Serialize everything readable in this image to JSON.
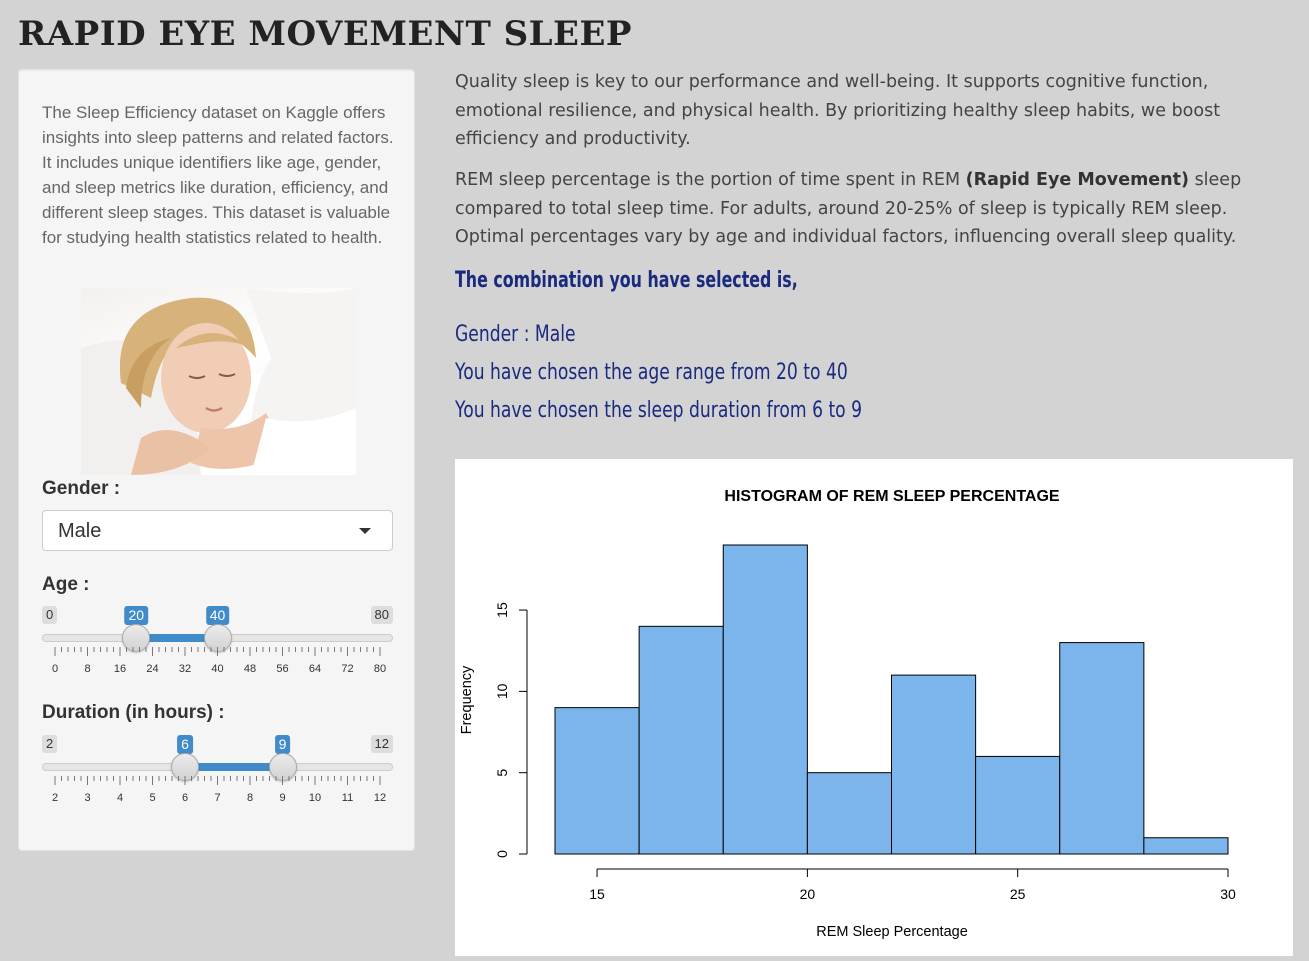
{
  "page": {
    "title": "RAPID EYE MOVEMENT SLEEP"
  },
  "sidebar": {
    "intro": "The Sleep Efficiency dataset on Kaggle offers insights into sleep patterns and related factors. It includes unique identifiers like age, gender, and sleep metrics like duration, efficiency, and different sleep stages. This dataset is valuable for studying health statistics related to health.",
    "gender": {
      "label": "Gender :",
      "selected": "Male"
    },
    "age": {
      "label": "Age :",
      "min": 0,
      "max": 80,
      "from": 20,
      "to": 40,
      "min_label": "0",
      "max_label": "80",
      "from_label": "20",
      "to_label": "40",
      "ticks": [
        "0",
        "8",
        "16",
        "24",
        "32",
        "40",
        "48",
        "56",
        "64",
        "72",
        "80"
      ]
    },
    "duration": {
      "label": "Duration (in hours) :",
      "min": 2,
      "max": 12,
      "from": 6,
      "to": 9,
      "min_label": "2",
      "max_label": "12",
      "from_label": "6",
      "to_label": "9",
      "ticks": [
        "2",
        "3",
        "4",
        "5",
        "6",
        "7",
        "8",
        "9",
        "10",
        "11",
        "12"
      ]
    }
  },
  "main": {
    "paragraph1": "Quality sleep is key to our performance and well-being. It supports cognitive function, emotional resilience, and physical health. By prioritizing healthy sleep habits, we boost efficiency and productivity.",
    "paragraph2_before": "REM sleep percentage is the portion of time spent in REM ",
    "paragraph2_bold": "(Rapid Eye Movement)",
    "paragraph2_after": " sleep compared to total sleep time. For adults, around 20-25% of sleep is typically REM sleep. Optimal percentages vary by age and individual factors, influencing overall sleep quality.",
    "selection_heading": "The combination you have selected is,",
    "selection_gender": "Gender : Male",
    "selection_age": "You have chosen the age range from 20 to 40",
    "selection_duration": "You have chosen the sleep duration from 6 to 9"
  },
  "colors": {
    "bar_fill": "#7cb5ec",
    "slider_accent": "#428bca",
    "heading_text": "#1a2a7f"
  },
  "chart_data": {
    "type": "bar",
    "title": "HISTOGRAM OF REM SLEEP PERCENTAGE",
    "xlabel": "REM Sleep Percentage",
    "ylabel": "Frequency",
    "bins": [
      [
        14,
        16
      ],
      [
        16,
        18
      ],
      [
        18,
        20
      ],
      [
        20,
        22
      ],
      [
        22,
        24
      ],
      [
        24,
        26
      ],
      [
        26,
        28
      ],
      [
        28,
        30
      ]
    ],
    "values": [
      9,
      14,
      19,
      5,
      11,
      6,
      13,
      1
    ],
    "xlim": [
      14,
      30
    ],
    "ylim": [
      0,
      19
    ],
    "xticks": [
      "15",
      "20",
      "25",
      "30"
    ],
    "yticks": [
      "0",
      "5",
      "10",
      "15"
    ],
    "grid": false
  }
}
